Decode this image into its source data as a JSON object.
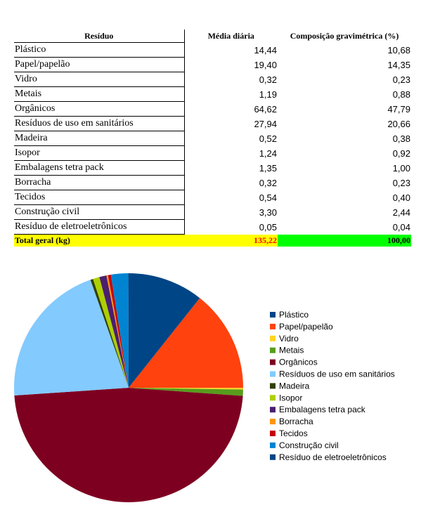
{
  "table": {
    "headers": [
      "Resíduo",
      "Média diária",
      "Composição gravimétrica (%)"
    ],
    "rows": [
      {
        "name": "Plástico",
        "avg": "14,44",
        "comp": "10,68"
      },
      {
        "name": "Papel/papelão",
        "avg": "19,40",
        "comp": "14,35"
      },
      {
        "name": "Vidro",
        "avg": "0,32",
        "comp": "0,23"
      },
      {
        "name": "Metais",
        "avg": "1,19",
        "comp": "0,88"
      },
      {
        "name": "Orgânicos",
        "avg": "64,62",
        "comp": "47,79"
      },
      {
        "name": "Resíduos de uso em sanitários",
        "avg": "27,94",
        "comp": "20,66"
      },
      {
        "name": "Madeira",
        "avg": "0,52",
        "comp": "0,38"
      },
      {
        "name": "Isopor",
        "avg": "1,24",
        "comp": "0,92"
      },
      {
        "name": "Embalagens tetra pack",
        "avg": "1,35",
        "comp": "1,00"
      },
      {
        "name": "Borracha",
        "avg": "0,32",
        "comp": "0,23"
      },
      {
        "name": "Tecidos",
        "avg": "0,54",
        "comp": "0,40"
      },
      {
        "name": "Construção civil",
        "avg": "3,30",
        "comp": "2,44"
      },
      {
        "name": "Resíduo de eletroeletrônicos",
        "avg": "0,05",
        "comp": "0,04"
      }
    ],
    "total": {
      "name": "Total geral (kg)",
      "avg": "135,22",
      "comp": "100,00"
    },
    "colors": {
      "total_avg_bg": "#ffff00",
      "total_comp_bg": "#00ff00",
      "total_avg_text": "#ff0000"
    }
  },
  "chart_data": {
    "type": "pie",
    "categories": [
      "Plástico",
      "Papel/papelão",
      "Vidro",
      "Metais",
      "Orgânicos",
      "Resíduos de uso em sanitários",
      "Madeira",
      "Isopor",
      "Embalagens tetra pack",
      "Borracha",
      "Tecidos",
      "Construção civil",
      "Resíduo de eletroeletrônicos"
    ],
    "values": [
      10.68,
      14.35,
      0.23,
      0.88,
      47.79,
      20.66,
      0.38,
      0.92,
      1.0,
      0.23,
      0.4,
      2.44,
      0.04
    ],
    "draw_order": [
      11,
      10,
      9,
      8,
      7,
      6,
      5,
      4,
      3,
      2,
      1,
      0
    ],
    "colors": [
      "#004586",
      "#ff420e",
      "#ffd320",
      "#579d1c",
      "#7e0021",
      "#83caff",
      "#314004",
      "#aecf00",
      "#4b1f6f",
      "#ff950e",
      "#c5000b",
      "#0084d1",
      "#004586"
    ],
    "legend_position": "right"
  }
}
